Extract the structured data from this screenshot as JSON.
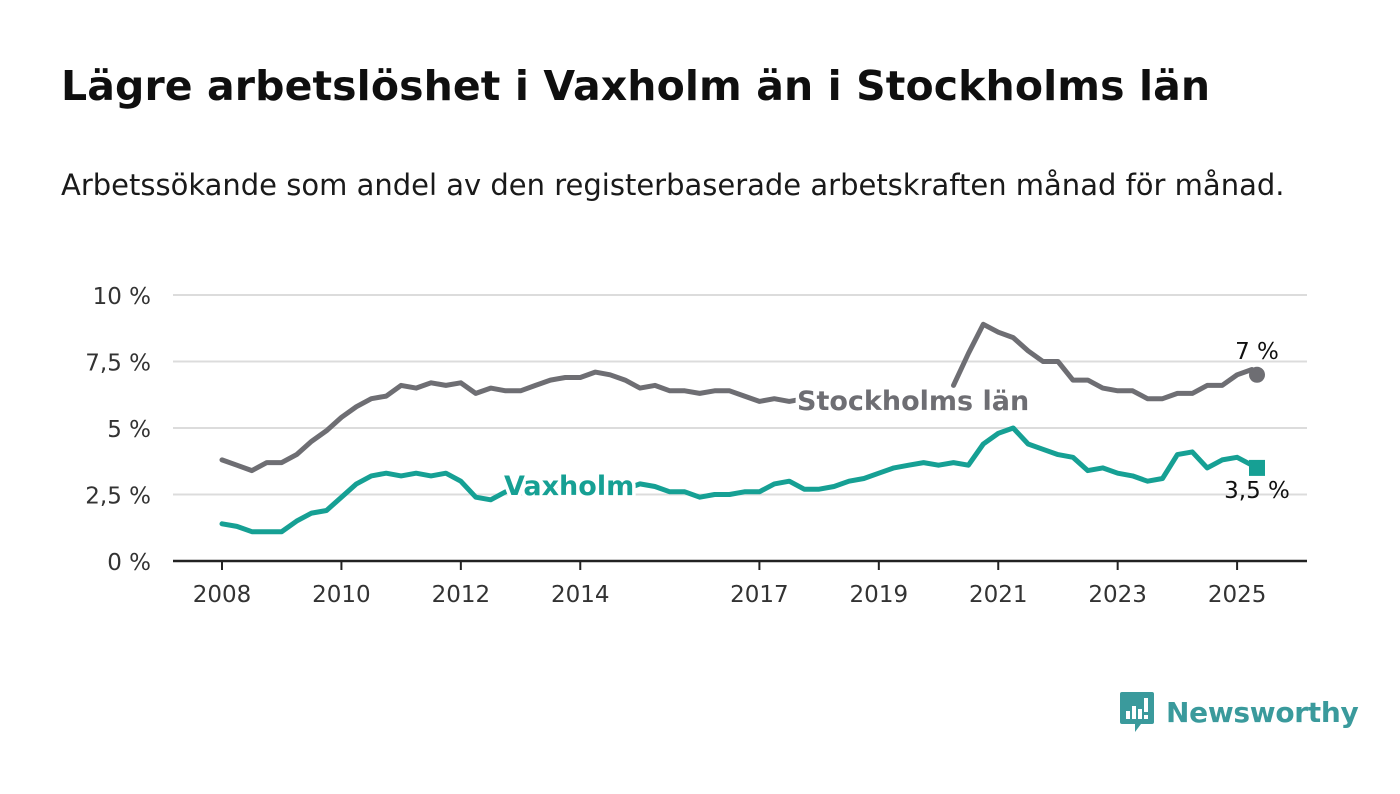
{
  "title": "Lägre arbetslöshet i Vaxholm än i Stockholms län",
  "subtitle": "Arbetssökande som andel av den registerbaserade arbetskraften månad för månad.",
  "logo": {
    "icon": "bar-chart-speech-bubble-icon",
    "text": "Newsworthy"
  },
  "colors": {
    "stockholm": "#6e6e73",
    "vaxholm": "#16a094",
    "grid": "#dcdcdc",
    "axis": "#222222",
    "logo": "#3a9a9c"
  },
  "chart_data": {
    "type": "line",
    "title": "Lägre arbetslöshet i Vaxholm än i Stockholms län",
    "subtitle": "Arbetssökande som andel av den registerbaserade arbetskraften månad för månad.",
    "x_start": "2008-01",
    "x_end": "2025-05",
    "x_ticks": [
      "2008",
      "2010",
      "2012",
      "2014",
      "2017",
      "2019",
      "2021",
      "2023",
      "2025"
    ],
    "y_ticks": [
      {
        "value": 0,
        "label": "0 %"
      },
      {
        "value": 2.5,
        "label": "2,5 %"
      },
      {
        "value": 5,
        "label": "5 %"
      },
      {
        "value": 7.5,
        "label": "7,5 %"
      },
      {
        "value": 10,
        "label": "10 %"
      }
    ],
    "ylim": [
      0,
      10
    ],
    "grid": true,
    "series": [
      {
        "name": "Stockholms län",
        "color": "#6e6e73",
        "end_label": "7 %",
        "points": [
          [
            "2008-01",
            3.8
          ],
          [
            "2008-04",
            3.6
          ],
          [
            "2008-07",
            3.4
          ],
          [
            "2008-10",
            3.7
          ],
          [
            "2009-01",
            3.7
          ],
          [
            "2009-04",
            4.0
          ],
          [
            "2009-07",
            4.5
          ],
          [
            "2009-10",
            4.9
          ],
          [
            "2010-01",
            5.4
          ],
          [
            "2010-04",
            5.8
          ],
          [
            "2010-07",
            6.1
          ],
          [
            "2010-10",
            6.2
          ],
          [
            "2011-01",
            6.6
          ],
          [
            "2011-04",
            6.5
          ],
          [
            "2011-07",
            6.7
          ],
          [
            "2011-10",
            6.6
          ],
          [
            "2012-01",
            6.7
          ],
          [
            "2012-04",
            6.3
          ],
          [
            "2012-07",
            6.5
          ],
          [
            "2012-10",
            6.4
          ],
          [
            "2013-01",
            6.4
          ],
          [
            "2013-04",
            6.6
          ],
          [
            "2013-07",
            6.8
          ],
          [
            "2013-10",
            6.9
          ],
          [
            "2014-01",
            6.9
          ],
          [
            "2014-04",
            7.1
          ],
          [
            "2014-07",
            7.0
          ],
          [
            "2014-10",
            6.8
          ],
          [
            "2015-01",
            6.5
          ],
          [
            "2015-04",
            6.6
          ],
          [
            "2015-07",
            6.4
          ],
          [
            "2015-10",
            6.4
          ],
          [
            "2016-01",
            6.3
          ],
          [
            "2016-04",
            6.4
          ],
          [
            "2016-07",
            6.4
          ],
          [
            "2016-10",
            6.2
          ],
          [
            "2017-01",
            6.0
          ],
          [
            "2017-04",
            6.1
          ],
          [
            "2017-07",
            6.0
          ],
          [
            "2017-10",
            6.1
          ],
          [
            "2018-01",
            5.9
          ],
          [
            "2018-04",
            6.1
          ]
        ],
        "points_2": [
          [
            "2020-04",
            6.6
          ],
          [
            "2020-07",
            7.8
          ],
          [
            "2020-10",
            8.9
          ],
          [
            "2021-01",
            8.6
          ],
          [
            "2021-04",
            8.4
          ],
          [
            "2021-07",
            7.9
          ],
          [
            "2021-10",
            7.5
          ],
          [
            "2022-01",
            7.5
          ],
          [
            "2022-04",
            6.8
          ],
          [
            "2022-07",
            6.8
          ],
          [
            "2022-10",
            6.5
          ],
          [
            "2023-01",
            6.4
          ],
          [
            "2023-04",
            6.4
          ],
          [
            "2023-07",
            6.1
          ],
          [
            "2023-10",
            6.1
          ],
          [
            "2024-01",
            6.3
          ],
          [
            "2024-04",
            6.3
          ],
          [
            "2024-07",
            6.6
          ],
          [
            "2024-10",
            6.6
          ],
          [
            "2025-01",
            7.0
          ],
          [
            "2025-04",
            7.2
          ],
          [
            "2025-05",
            7.0
          ]
        ]
      },
      {
        "name": "Vaxholm",
        "color": "#16a094",
        "end_label": "3,5 %",
        "points": [
          [
            "2008-01",
            1.4
          ],
          [
            "2008-04",
            1.3
          ],
          [
            "2008-07",
            1.1
          ],
          [
            "2008-10",
            1.1
          ],
          [
            "2009-01",
            1.1
          ],
          [
            "2009-04",
            1.5
          ],
          [
            "2009-07",
            1.8
          ],
          [
            "2009-10",
            1.9
          ],
          [
            "2010-01",
            2.4
          ],
          [
            "2010-04",
            2.9
          ],
          [
            "2010-07",
            3.2
          ],
          [
            "2010-10",
            3.3
          ],
          [
            "2011-01",
            3.2
          ],
          [
            "2011-04",
            3.3
          ],
          [
            "2011-07",
            3.2
          ],
          [
            "2011-10",
            3.3
          ],
          [
            "2012-01",
            3.0
          ],
          [
            "2012-04",
            2.4
          ],
          [
            "2012-07",
            2.3
          ],
          [
            "2012-10",
            2.6
          ],
          [
            "2013-01",
            2.8
          ],
          [
            "2013-04",
            2.9
          ],
          [
            "2013-07",
            2.9
          ],
          [
            "2013-10",
            2.8
          ],
          [
            "2014-01",
            2.9
          ],
          [
            "2014-04",
            2.8
          ],
          [
            "2014-07",
            2.8
          ],
          [
            "2014-10",
            2.7
          ],
          [
            "2015-01",
            2.9
          ],
          [
            "2015-04",
            2.8
          ],
          [
            "2015-07",
            2.6
          ],
          [
            "2015-10",
            2.6
          ],
          [
            "2016-01",
            2.4
          ],
          [
            "2016-04",
            2.5
          ],
          [
            "2016-07",
            2.5
          ],
          [
            "2016-10",
            2.6
          ],
          [
            "2017-01",
            2.6
          ],
          [
            "2017-04",
            2.9
          ],
          [
            "2017-07",
            3.0
          ],
          [
            "2017-10",
            2.7
          ],
          [
            "2018-01",
            2.7
          ],
          [
            "2018-04",
            2.8
          ],
          [
            "2018-07",
            3.0
          ],
          [
            "2018-10",
            3.1
          ],
          [
            "2019-01",
            3.3
          ],
          [
            "2019-04",
            3.5
          ],
          [
            "2019-07",
            3.6
          ],
          [
            "2019-10",
            3.7
          ],
          [
            "2020-01",
            3.6
          ],
          [
            "2020-04",
            3.7
          ],
          [
            "2020-07",
            3.6
          ],
          [
            "2020-10",
            4.4
          ],
          [
            "2021-01",
            4.8
          ],
          [
            "2021-04",
            5.0
          ],
          [
            "2021-07",
            4.4
          ],
          [
            "2021-10",
            4.2
          ],
          [
            "2022-01",
            4.0
          ],
          [
            "2022-04",
            3.9
          ],
          [
            "2022-07",
            3.4
          ],
          [
            "2022-10",
            3.5
          ],
          [
            "2023-01",
            3.3
          ],
          [
            "2023-04",
            3.2
          ],
          [
            "2023-07",
            3.0
          ],
          [
            "2023-10",
            3.1
          ],
          [
            "2024-01",
            4.0
          ],
          [
            "2024-04",
            4.1
          ],
          [
            "2024-07",
            3.5
          ],
          [
            "2024-10",
            3.8
          ],
          [
            "2025-01",
            3.9
          ],
          [
            "2025-04",
            3.6
          ],
          [
            "2025-05",
            3.5
          ]
        ]
      }
    ]
  }
}
